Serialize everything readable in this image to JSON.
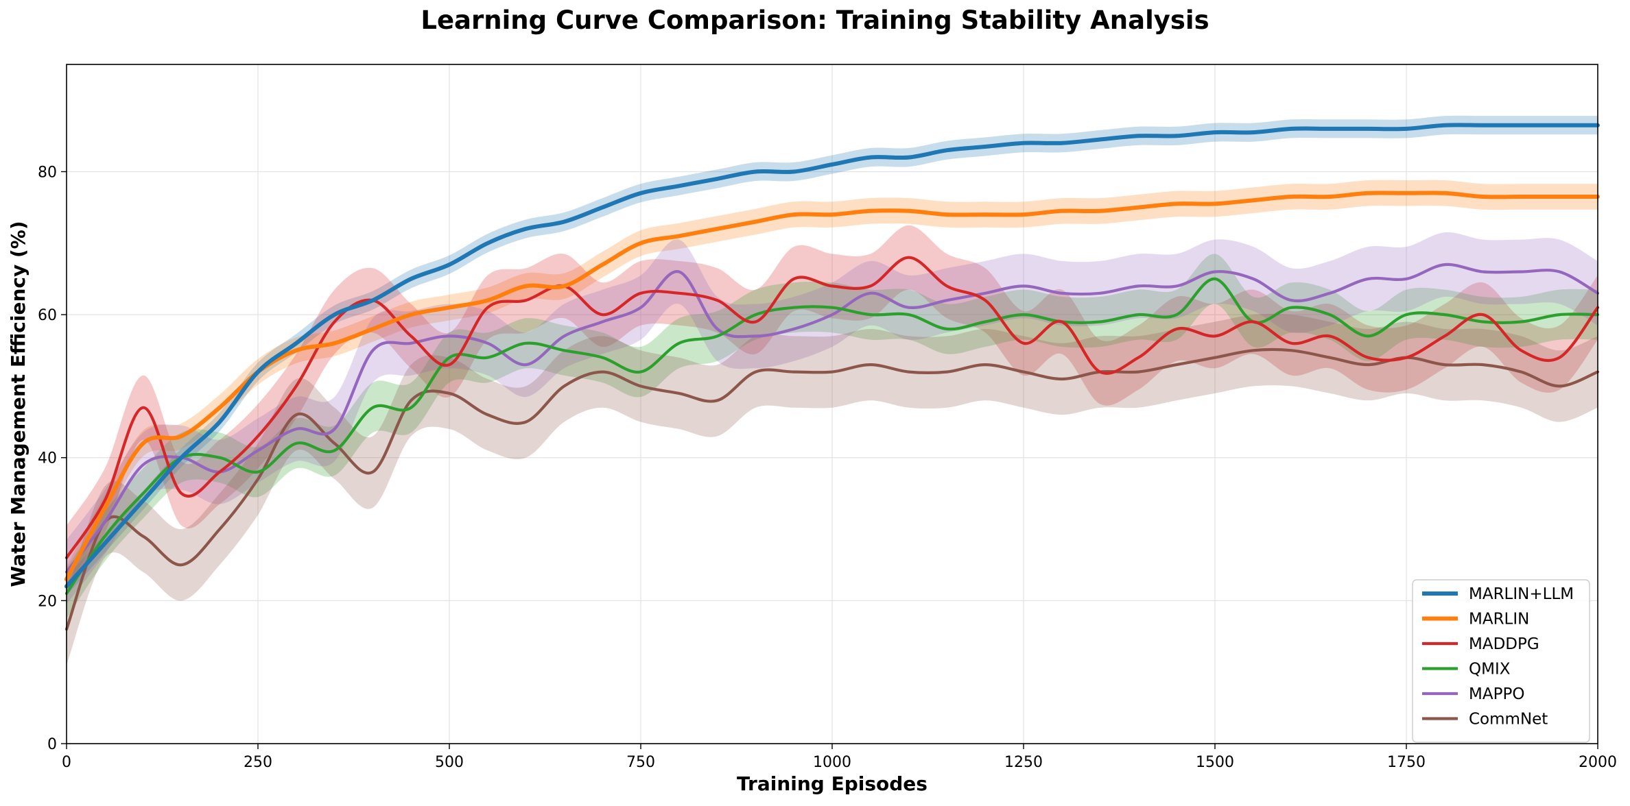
{
  "chart_data": {
    "type": "line",
    "title": "Learning Curve Comparison: Training Stability Analysis",
    "xlabel": "Training Episodes",
    "ylabel": "Water Management Efficiency (%)",
    "xlim": [
      0,
      2000
    ],
    "ylim": [
      0,
      95
    ],
    "xticks": [
      0,
      250,
      500,
      750,
      1000,
      1250,
      1500,
      1750,
      2000
    ],
    "yticks": [
      0,
      20,
      40,
      60,
      80
    ],
    "grid": true,
    "legend_position": "lower-right",
    "x": [
      0,
      50,
      100,
      150,
      200,
      250,
      300,
      350,
      400,
      450,
      500,
      550,
      600,
      650,
      700,
      750,
      800,
      850,
      900,
      950,
      1000,
      1050,
      1100,
      1150,
      1200,
      1250,
      1300,
      1350,
      1400,
      1450,
      1500,
      1550,
      1600,
      1650,
      1700,
      1750,
      1800,
      1850,
      1900,
      1950,
      2000
    ],
    "series": [
      {
        "name": "MARLIN+LLM",
        "color": "#1f77b4",
        "band": 1.3,
        "values": [
          22,
          28,
          34,
          40,
          45,
          52,
          56,
          60,
          62,
          65,
          67,
          70,
          72,
          73,
          75,
          77,
          78,
          79,
          80,
          80,
          81,
          82,
          82,
          83,
          83.5,
          84,
          84,
          84.5,
          85,
          85,
          85.5,
          85.5,
          86,
          86,
          86,
          86,
          86.5,
          86.5,
          86.5,
          86.5,
          86.5
        ]
      },
      {
        "name": "MARLIN",
        "color": "#ff7f0e",
        "band": 1.8,
        "values": [
          23,
          33,
          42,
          43,
          47,
          52,
          55,
          56,
          58,
          60,
          61,
          62,
          64,
          64,
          67,
          70,
          71,
          72,
          73,
          74,
          74,
          74.5,
          74.5,
          74,
          74,
          74,
          74.5,
          74.5,
          75,
          75.5,
          75.5,
          76,
          76.5,
          76.5,
          77,
          77,
          77,
          76.5,
          76.5,
          76.5,
          76.5
        ]
      },
      {
        "name": "MADDPG",
        "color": "#d62728",
        "band": 4.5,
        "values": [
          26,
          34,
          47,
          35,
          38,
          43,
          50,
          59,
          62,
          57,
          53,
          61,
          62,
          64,
          60,
          63,
          63,
          62,
          59,
          65,
          64,
          64,
          68,
          64,
          62,
          56,
          59,
          52,
          54,
          58,
          57,
          59,
          56,
          57,
          54,
          54,
          57,
          60,
          55,
          54,
          61
        ]
      },
      {
        "name": "QMIX",
        "color": "#2ca02c",
        "band": 3.5,
        "values": [
          21,
          29,
          35,
          40,
          40,
          38,
          42,
          41,
          47,
          47,
          54,
          54,
          56,
          55,
          54,
          52,
          56,
          57,
          60,
          61,
          61,
          60,
          60,
          58,
          59,
          60,
          59,
          59,
          60,
          60,
          65,
          59,
          61,
          60,
          57,
          60,
          60,
          59,
          59,
          60,
          60
        ]
      },
      {
        "name": "MAPPO",
        "color": "#9467bd",
        "band": 4.5,
        "values": [
          24,
          31,
          39,
          40,
          38,
          41,
          44,
          44,
          55,
          56,
          57,
          56,
          53,
          57,
          59,
          61,
          66,
          58,
          57,
          58,
          60,
          63,
          61,
          62,
          63,
          64,
          63,
          63,
          64,
          64,
          66,
          65,
          62,
          63,
          65,
          65,
          67,
          66,
          66,
          66,
          63
        ]
      },
      {
        "name": "CommNet",
        "color": "#8c564b",
        "band": 5.0,
        "values": [
          16,
          31,
          29,
          25,
          30,
          37,
          46,
          42,
          38,
          48,
          49,
          46,
          45,
          50,
          52,
          50,
          49,
          48,
          52,
          52,
          52,
          53,
          52,
          52,
          53,
          52,
          51,
          52,
          52,
          53,
          54,
          55,
          55,
          54,
          53,
          54,
          53,
          53,
          52,
          50,
          52
        ]
      }
    ]
  }
}
